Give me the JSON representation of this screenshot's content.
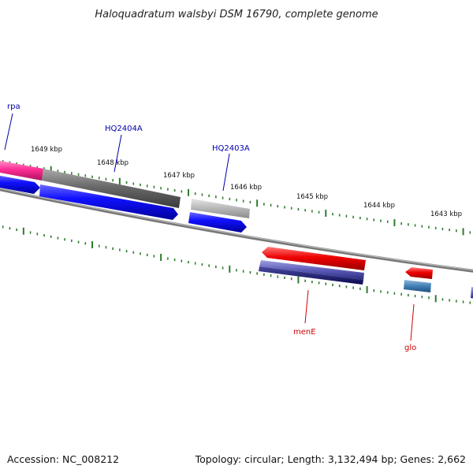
{
  "title": "Haloquadratum walsbyi DSM 16790, complete genome",
  "footer": {
    "accession": "Accession: NC_008212",
    "summary": "Topology: circular; Length: 3,132,494 bp; Genes: 2,662"
  },
  "colors": {
    "backbone": "#8a8a8a",
    "tick": "#2e7d2e",
    "label_forward": "#0000aa",
    "label_reverse": "#cc0000"
  },
  "ticks": [
    {
      "label": "1649 kbp"
    },
    {
      "label": "1648 kbp"
    },
    {
      "label": "1647 kbp"
    },
    {
      "label": "1646 kbp"
    },
    {
      "label": "1645 kbp"
    },
    {
      "label": "1644 kbp"
    },
    {
      "label": "1643 kbp"
    }
  ],
  "gene_labels": [
    {
      "name": "rpa",
      "strand": "forward"
    },
    {
      "name": "HQ2404A",
      "strand": "forward"
    },
    {
      "name": "HQ2403A",
      "strand": "forward"
    },
    {
      "name": "menE",
      "strand": "reverse"
    },
    {
      "name": "glo",
      "strand": "reverse"
    }
  ]
}
